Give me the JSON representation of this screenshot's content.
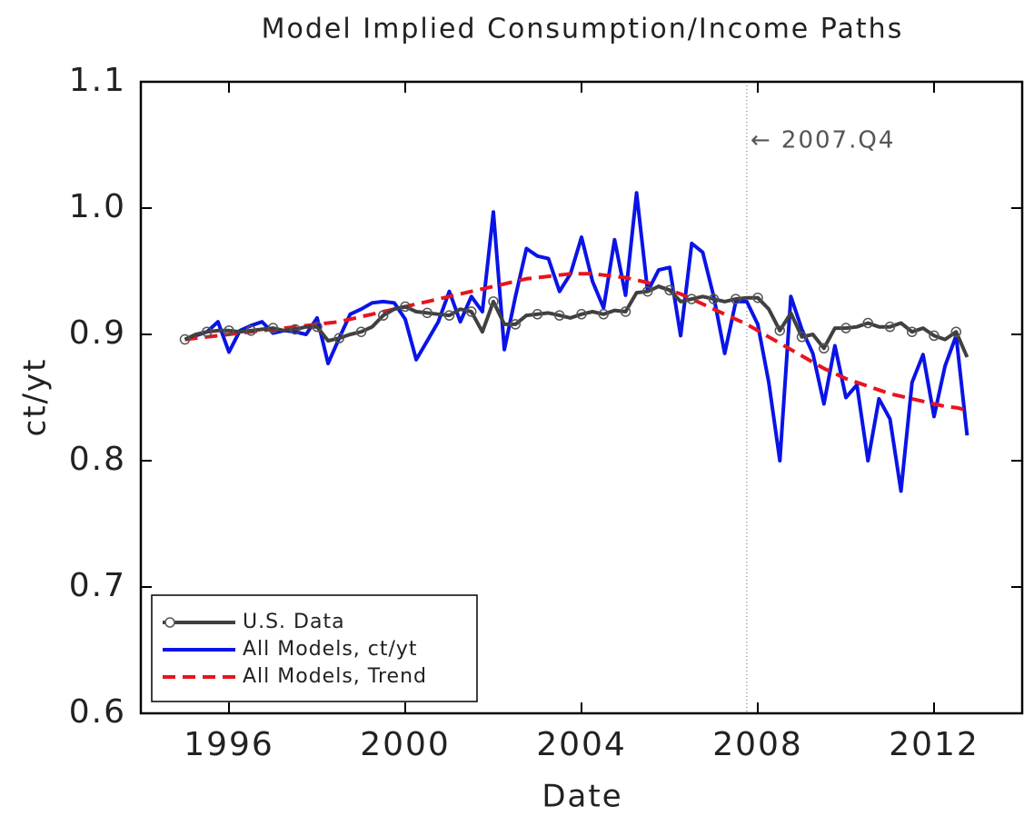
{
  "chart_data": {
    "type": "line",
    "title": "Model Implied Consumption/Income Paths",
    "xlabel": "Date",
    "ylabel": "ct/yt",
    "xlim": [
      1994,
      2014
    ],
    "ylim": [
      0.6,
      1.1
    ],
    "xticks": [
      1996,
      2000,
      2004,
      2008,
      2012
    ],
    "yticks": [
      0.6,
      0.7,
      0.8,
      0.9,
      {
        "value": 1.0,
        "label": "1.0"
      },
      1.1
    ],
    "annotation": {
      "x": 2007.75,
      "text": "← 2007.Q4"
    },
    "legend": "lower left",
    "x": [
      1995,
      1995.25,
      1995.5,
      1995.75,
      1996,
      1996.25,
      1996.5,
      1996.75,
      1997,
      1997.25,
      1997.5,
      1997.75,
      1998,
      1998.25,
      1998.5,
      1998.75,
      1999,
      1999.25,
      1999.5,
      1999.75,
      2000,
      2000.25,
      2000.5,
      2000.75,
      2001,
      2001.25,
      2001.5,
      2001.75,
      2002,
      2002.25,
      2002.5,
      2002.75,
      2003,
      2003.25,
      2003.5,
      2003.75,
      2004,
      2004.25,
      2004.5,
      2004.75,
      2005,
      2005.25,
      2005.5,
      2005.75,
      2006,
      2006.25,
      2006.5,
      2006.75,
      2007,
      2007.25,
      2007.5,
      2007.75,
      2008,
      2008.25,
      2008.5,
      2008.75,
      2009,
      2009.25,
      2009.5,
      2009.75,
      2010,
      2010.25,
      2010.5,
      2010.75,
      2011,
      2011.25,
      2011.5,
      2011.75,
      2012,
      2012.25,
      2012.5,
      2012.75
    ],
    "series": [
      {
        "name": "U.S. Data",
        "color": "#404040",
        "marker": true,
        "dash": false,
        "values": [
          0.896,
          0.9,
          0.902,
          0.903,
          0.903,
          0.902,
          0.903,
          0.904,
          0.905,
          0.903,
          0.904,
          0.906,
          0.906,
          0.895,
          0.897,
          0.9,
          0.902,
          0.906,
          0.915,
          0.92,
          0.922,
          0.918,
          0.917,
          0.916,
          0.915,
          0.92,
          0.918,
          0.902,
          0.926,
          0.908,
          0.908,
          0.915,
          0.916,
          0.917,
          0.915,
          0.913,
          0.916,
          0.918,
          0.916,
          0.919,
          0.918,
          0.933,
          0.934,
          0.938,
          0.935,
          0.926,
          0.928,
          0.93,
          0.928,
          0.926,
          0.928,
          0.929,
          0.929,
          0.92,
          0.903,
          0.917,
          0.898,
          0.9,
          0.889,
          0.905,
          0.905,
          0.906,
          0.909,
          0.906,
          0.906,
          0.909,
          0.902,
          0.905,
          0.899,
          0.896,
          0.902,
          0.882
        ]
      },
      {
        "name": "All Models, ct/yt",
        "color": "#0a14e6",
        "marker": false,
        "dash": false,
        "values": [
          0.896,
          0.899,
          0.902,
          0.91,
          0.886,
          0.903,
          0.907,
          0.91,
          0.901,
          0.903,
          0.902,
          0.9,
          0.913,
          0.877,
          0.897,
          0.916,
          0.92,
          0.925,
          0.926,
          0.925,
          0.912,
          0.88,
          0.895,
          0.91,
          0.934,
          0.91,
          0.93,
          0.918,
          0.997,
          0.888,
          0.93,
          0.968,
          0.962,
          0.96,
          0.934,
          0.948,
          0.977,
          0.942,
          0.921,
          0.975,
          0.931,
          1.012,
          0.934,
          0.951,
          0.953,
          0.899,
          0.972,
          0.965,
          0.93,
          0.885,
          0.926,
          0.926,
          0.908,
          0.862,
          0.8,
          0.93,
          0.904,
          0.885,
          0.845,
          0.891,
          0.85,
          0.86,
          0.8,
          0.849,
          0.833,
          0.776,
          0.862,
          0.884,
          0.835,
          0.875,
          0.899,
          0.82
        ]
      },
      {
        "name": "All Models, Trend",
        "color": "#e8141e",
        "marker": false,
        "dash": true,
        "values": [
          0.896,
          0.897,
          0.898,
          0.899,
          0.9,
          0.901,
          0.902,
          0.903,
          0.904,
          0.905,
          0.906,
          0.907,
          0.908,
          0.909,
          0.91,
          0.912,
          0.914,
          0.916,
          0.918,
          0.92,
          0.922,
          0.924,
          0.926,
          0.928,
          0.93,
          0.932,
          0.934,
          0.936,
          0.938,
          0.94,
          0.942,
          0.944,
          0.945,
          0.946,
          0.947,
          0.948,
          0.948,
          0.948,
          0.947,
          0.946,
          0.945,
          0.943,
          0.941,
          0.938,
          0.935,
          0.932,
          0.928,
          0.924,
          0.92,
          0.916,
          0.912,
          0.908,
          0.903,
          0.898,
          0.893,
          0.888,
          0.883,
          0.878,
          0.873,
          0.869,
          0.865,
          0.862,
          0.859,
          0.856,
          0.853,
          0.851,
          0.849,
          0.847,
          0.845,
          0.843,
          0.842,
          0.84
        ]
      }
    ]
  }
}
